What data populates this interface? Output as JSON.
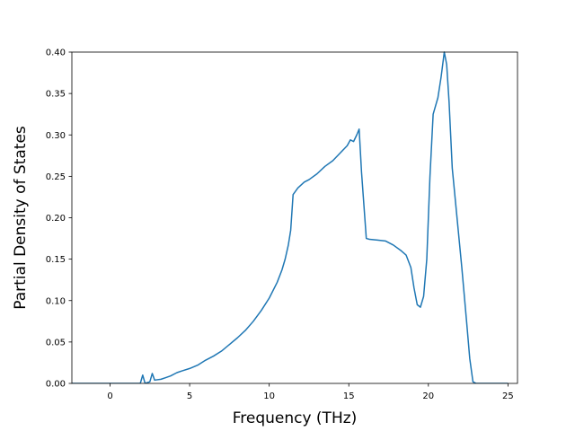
{
  "chart_data": {
    "type": "line",
    "title": "",
    "xlabel": "Frequency (THz)",
    "ylabel": "Partial Density of States",
    "xlim": [
      -2.4,
      25.6
    ],
    "ylim": [
      0.0,
      0.4
    ],
    "xticks": [
      0,
      5,
      10,
      15,
      20,
      25
    ],
    "xtick_labels": [
      "0",
      "5",
      "10",
      "15",
      "20",
      "25"
    ],
    "yticks": [
      0.0,
      0.05,
      0.1,
      0.15,
      0.2,
      0.25,
      0.3,
      0.35,
      0.4
    ],
    "ytick_labels": [
      "0.00",
      "0.05",
      "0.10",
      "0.15",
      "0.20",
      "0.25",
      "0.30",
      "0.35",
      "0.40"
    ],
    "grid": false,
    "legend": "none",
    "colors": {
      "line": "#1f77b4",
      "axes": "#000000",
      "background": "#ffffff"
    },
    "series": [
      {
        "name": "",
        "x": [
          -2.4,
          -1,
          0,
          1,
          1.9,
          2.05,
          2.2,
          2.5,
          2.65,
          2.8,
          3.2,
          3.5,
          3.8,
          4.2,
          4.5,
          5.0,
          5.5,
          6.0,
          6.5,
          7.0,
          7.5,
          8.0,
          8.5,
          9.0,
          9.5,
          10.0,
          10.5,
          10.8,
          11.0,
          11.2,
          11.35,
          11.5,
          11.8,
          12.2,
          12.5,
          13.0,
          13.5,
          14.0,
          14.5,
          14.9,
          15.1,
          15.3,
          15.5,
          15.65,
          15.8,
          15.95,
          16.1,
          16.3,
          16.8,
          17.3,
          17.8,
          18.3,
          18.6,
          18.9,
          19.1,
          19.3,
          19.5,
          19.7,
          19.9,
          20.1,
          20.3,
          20.6,
          20.8,
          21.0,
          21.15,
          21.3,
          21.5,
          21.8,
          22.1,
          22.4,
          22.6,
          22.8,
          23.0,
          24.0,
          25.0
        ],
        "y": [
          0.0,
          0.0,
          0.0,
          0.0,
          0.0,
          0.01,
          0.0,
          0.002,
          0.012,
          0.004,
          0.005,
          0.007,
          0.009,
          0.013,
          0.015,
          0.018,
          0.022,
          0.028,
          0.033,
          0.039,
          0.047,
          0.055,
          0.064,
          0.075,
          0.088,
          0.103,
          0.122,
          0.137,
          0.15,
          0.167,
          0.185,
          0.228,
          0.236,
          0.243,
          0.246,
          0.253,
          0.262,
          0.269,
          0.279,
          0.287,
          0.294,
          0.292,
          0.3,
          0.307,
          0.255,
          0.215,
          0.175,
          0.174,
          0.173,
          0.172,
          0.167,
          0.16,
          0.155,
          0.14,
          0.115,
          0.095,
          0.092,
          0.105,
          0.15,
          0.25,
          0.325,
          0.345,
          0.37,
          0.4,
          0.385,
          0.34,
          0.26,
          0.2,
          0.14,
          0.075,
          0.03,
          0.002,
          0.0,
          0.0,
          0.0
        ]
      }
    ]
  }
}
